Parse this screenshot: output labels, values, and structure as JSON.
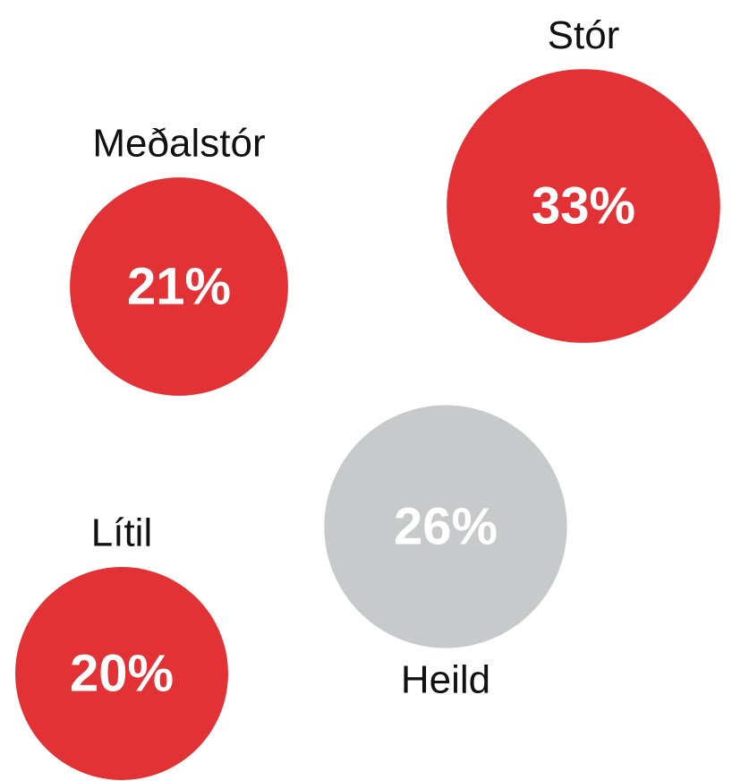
{
  "chart_data": {
    "type": "bubble",
    "categories": [
      "Meðalstór",
      "Stór",
      "Lítil",
      "Heild"
    ],
    "values": [
      21,
      33,
      20,
      26
    ],
    "value_labels": [
      "21%",
      "33%",
      "20%",
      "26%"
    ],
    "colors": [
      "#e33235",
      "#e33235",
      "#e33235",
      "#c8c9cb"
    ]
  }
}
